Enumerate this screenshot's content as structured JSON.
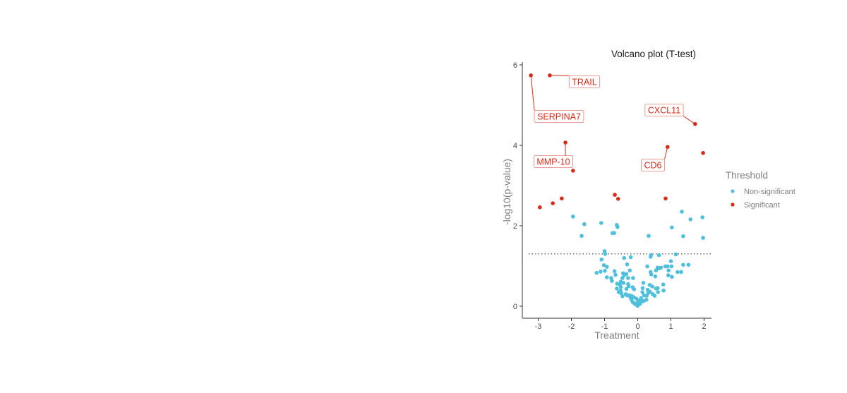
{
  "chart_data": {
    "type": "scatter",
    "title": "Volcano plot (T-test)",
    "xlabel": "Treatment",
    "ylabel": "-log10(p-value)",
    "xlim": [
      -3.45,
      2.2
    ],
    "ylim": [
      -0.3,
      6.05
    ],
    "xticks": [
      -3,
      -2,
      -1,
      0,
      1,
      2
    ],
    "yticks": [
      0,
      2,
      4,
      6
    ],
    "grid": false,
    "threshold_line": {
      "y": 1.3,
      "style": "dotted"
    },
    "legend": {
      "title": "Threshold",
      "placement": "right"
    },
    "colors": {
      "Non-significant": "#4fbfdb",
      "Significant": "#d62c1a"
    },
    "series": [
      {
        "name": "Non-significant",
        "points": [
          [
            -1.95,
            2.23
          ],
          [
            -1.61,
            2.04
          ],
          [
            -1.69,
            1.75
          ],
          [
            -1.1,
            2.07
          ],
          [
            -0.63,
            2.02
          ],
          [
            -0.61,
            1.97
          ],
          [
            -0.76,
            1.82
          ],
          [
            -0.71,
            1.82
          ],
          [
            0.33,
            1.75
          ],
          [
            1.33,
            2.35
          ],
          [
            1.59,
            2.16
          ],
          [
            1.95,
            2.21
          ],
          [
            1.03,
            1.96
          ],
          [
            1.37,
            1.74
          ],
          [
            1.97,
            1.7
          ],
          [
            -1.0,
            1.37
          ],
          [
            -0.98,
            1.3
          ],
          [
            -1.09,
            1.16
          ],
          [
            -1.02,
            1.02
          ],
          [
            -0.93,
            0.98
          ],
          [
            -0.99,
            0.88
          ],
          [
            -1.12,
            0.86
          ],
          [
            -1.24,
            0.83
          ],
          [
            -0.93,
            0.72
          ],
          [
            -0.8,
            0.7
          ],
          [
            -0.78,
            0.63
          ],
          [
            -0.7,
            0.87
          ],
          [
            -0.67,
            0.78
          ],
          [
            -0.41,
            1.2
          ],
          [
            -0.32,
            1.04
          ],
          [
            -0.21,
            1.22
          ],
          [
            -0.24,
            0.89
          ],
          [
            -0.34,
            0.8
          ],
          [
            -0.44,
            0.82
          ],
          [
            -0.41,
            0.77
          ],
          [
            -0.46,
            0.7
          ],
          [
            -0.29,
            0.7
          ],
          [
            -0.14,
            0.7
          ],
          [
            -0.62,
            0.56
          ],
          [
            -0.51,
            0.61
          ],
          [
            -0.43,
            0.58
          ],
          [
            -0.63,
            0.44
          ],
          [
            -0.51,
            0.48
          ],
          [
            -0.34,
            0.43
          ],
          [
            -0.27,
            0.5
          ],
          [
            -0.15,
            0.47
          ],
          [
            -0.57,
            0.35
          ],
          [
            -0.49,
            0.32
          ],
          [
            -0.46,
            0.25
          ],
          [
            -0.32,
            0.27
          ],
          [
            -0.24,
            0.27
          ],
          [
            -0.17,
            0.25
          ],
          [
            -0.12,
            0.22
          ],
          [
            -0.19,
            0.16
          ],
          [
            -0.15,
            0.1
          ],
          [
            -0.1,
            0.07
          ],
          [
            -0.05,
            0.04
          ],
          [
            0.0,
            0.01
          ],
          [
            0.07,
            0.06
          ],
          [
            0.12,
            0.12
          ],
          [
            0.18,
            0.13
          ],
          [
            0.26,
            0.16
          ],
          [
            0.19,
            0.27
          ],
          [
            0.14,
            0.35
          ],
          [
            0.15,
            0.45
          ],
          [
            0.17,
            0.58
          ],
          [
            0.29,
            0.99
          ],
          [
            0.4,
            1.27
          ],
          [
            0.39,
            1.23
          ],
          [
            0.39,
            0.85
          ],
          [
            0.41,
            0.79
          ],
          [
            0.36,
            0.53
          ],
          [
            0.44,
            0.49
          ],
          [
            0.3,
            0.41
          ],
          [
            0.37,
            0.36
          ],
          [
            0.45,
            0.3
          ],
          [
            0.51,
            0.26
          ],
          [
            0.55,
            0.44
          ],
          [
            0.6,
            0.45
          ],
          [
            0.61,
            0.35
          ],
          [
            0.53,
            0.74
          ],
          [
            0.55,
            0.89
          ],
          [
            0.6,
            0.96
          ],
          [
            0.7,
            0.96
          ],
          [
            0.64,
            1.27
          ],
          [
            0.65,
            0.94
          ],
          [
            0.77,
            0.54
          ],
          [
            0.78,
            0.39
          ],
          [
            0.83,
            0.99
          ],
          [
            0.9,
            0.99
          ],
          [
            0.93,
            0.89
          ],
          [
            0.92,
            0.77
          ],
          [
            1.0,
            1.12
          ],
          [
            1.02,
            0.99
          ],
          [
            1.03,
            0.73
          ],
          [
            1.15,
            1.29
          ],
          [
            1.2,
            0.85
          ],
          [
            1.31,
            0.85
          ],
          [
            1.37,
            1.03
          ],
          [
            1.53,
            1.03
          ],
          [
            -0.04,
            0.19
          ],
          [
            0.03,
            0.13
          ],
          [
            -0.22,
            0.22
          ],
          [
            -0.36,
            0.3
          ],
          [
            -0.52,
            0.39
          ],
          [
            0.27,
            0.26
          ],
          [
            0.32,
            0.33
          ],
          [
            -0.11,
            0.42
          ],
          [
            0.0,
            0.1
          ],
          [
            0.1,
            0.2
          ],
          [
            -0.29,
            0.55
          ],
          [
            -0.54,
            0.54
          ]
        ]
      },
      {
        "name": "Significant",
        "points": [
          [
            -3.22,
            5.74
          ],
          [
            -2.65,
            5.74
          ],
          [
            -2.18,
            4.07
          ],
          [
            -1.95,
            3.37
          ],
          [
            0.9,
            3.96
          ],
          [
            1.73,
            4.53
          ],
          [
            1.97,
            3.81
          ],
          [
            -2.95,
            2.46
          ],
          [
            -2.56,
            2.56
          ],
          [
            -2.29,
            2.68
          ],
          [
            -0.69,
            2.77
          ],
          [
            -0.59,
            2.67
          ],
          [
            0.84,
            2.68
          ]
        ]
      }
    ],
    "annotations": [
      {
        "label": "SERPINA7",
        "x": -3.22,
        "y": 5.74
      },
      {
        "label": "TRAIL",
        "x": -2.65,
        "y": 5.74
      },
      {
        "label": "MMP-10",
        "x": -2.18,
        "y": 4.07
      },
      {
        "label": "CXCL11",
        "x": 1.73,
        "y": 4.53
      },
      {
        "label": "CD6",
        "x": 0.9,
        "y": 3.96
      }
    ]
  }
}
